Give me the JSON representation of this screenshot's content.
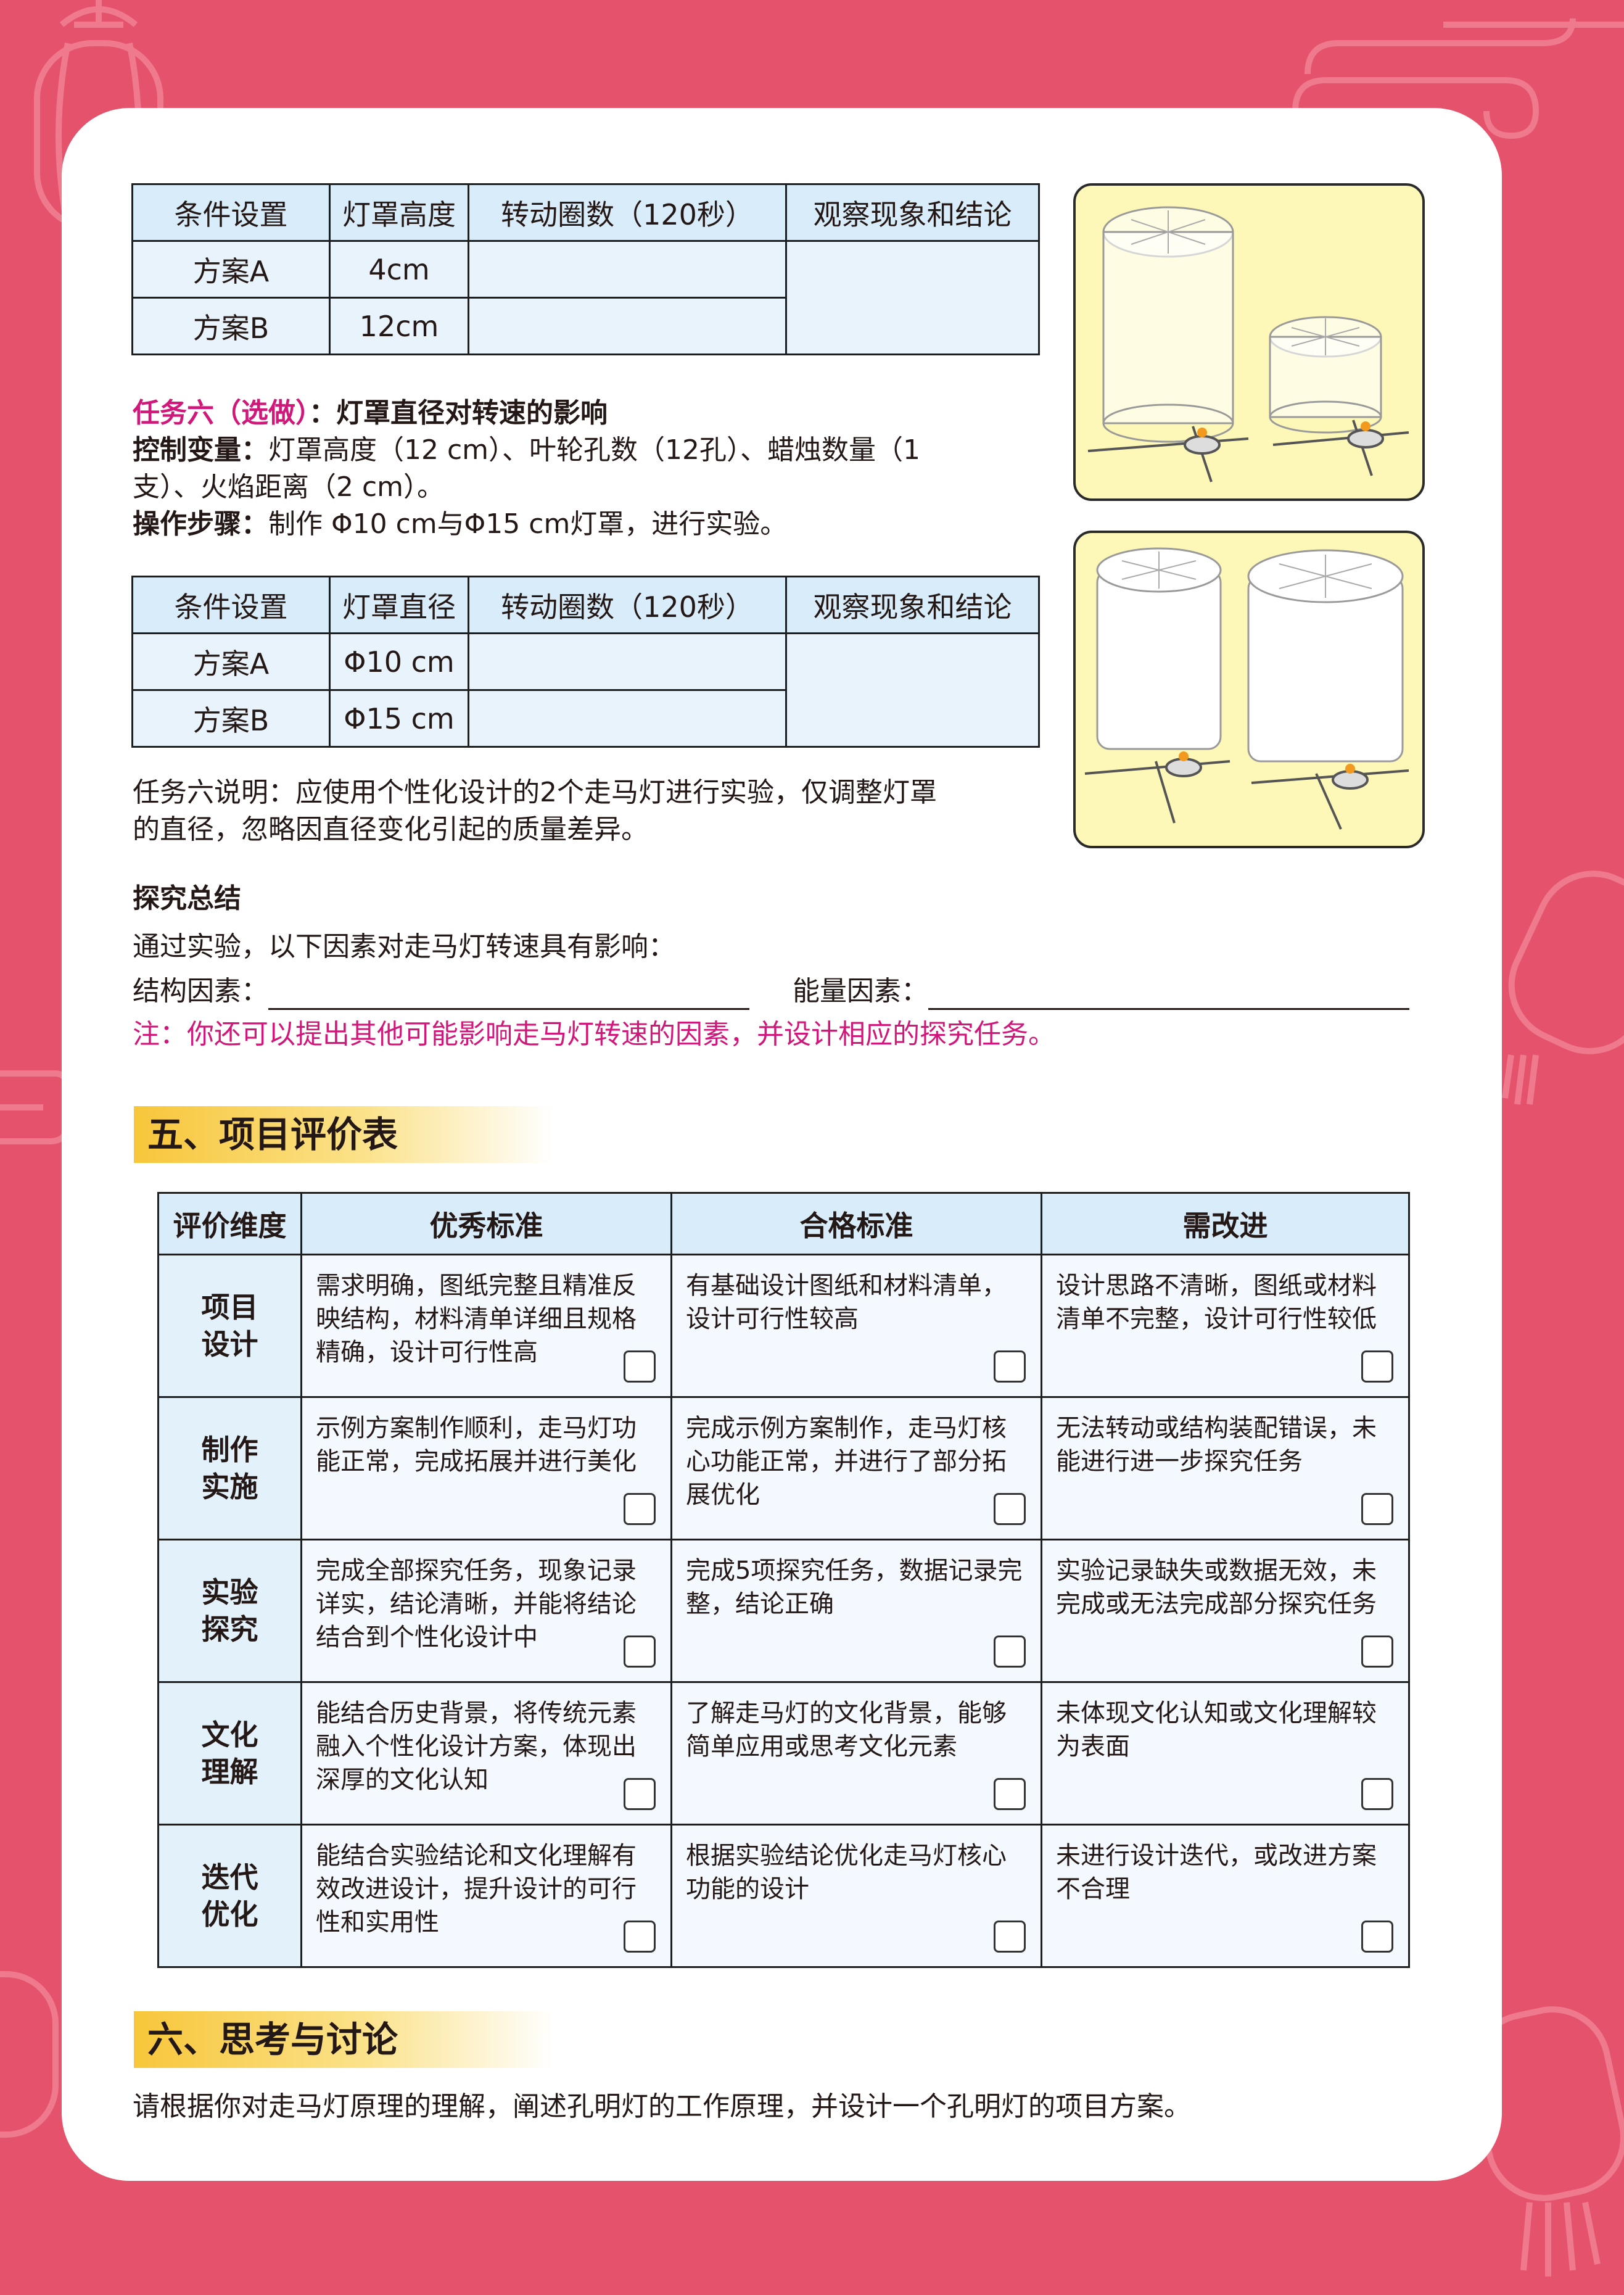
{
  "table1": {
    "headers": [
      "条件设置",
      "灯罩高度",
      "转动圈数（120秒）",
      "观察现象和结论"
    ],
    "rows": [
      {
        "label": "方案A",
        "value": "4cm"
      },
      {
        "label": "方案B",
        "value": "12cm"
      }
    ]
  },
  "task6": {
    "title_pink": "任务六（选做）",
    "title_rest": "：灯罩直径对转速的影响",
    "control_label": "控制变量：",
    "control_text_1": "灯罩高度（12 cm）、叶轮孔数（12孔）、蜡烛数量（1",
    "control_text_2": "支）、火焰距离（2 cm）。",
    "steps_label": "操作步骤：",
    "steps_text": "制作 Φ10 cm与Φ15 cm灯罩，进行实验。"
  },
  "table2": {
    "headers": [
      "条件设置",
      "灯罩直径",
      "转动圈数（120秒）",
      "观察现象和结论"
    ],
    "rows": [
      {
        "label": "方案A",
        "value": "Φ10 cm"
      },
      {
        "label": "方案B",
        "value": "Φ15 cm"
      }
    ]
  },
  "task6_note_1": "任务六说明：应使用个性化设计的2个走马灯进行实验，仅调整灯罩",
  "task6_note_2": "的直径，忽略因直径变化引起的质量差异。",
  "summary": {
    "title": "探究总结",
    "intro": "通过实验，以下因素对走马灯转速具有影响：",
    "structural_label": "结构因素：",
    "energy_label": "能量因素：",
    "note": "注：你还可以提出其他可能影响走马灯转速的因素，并设计相应的探究任务。"
  },
  "section5": {
    "title": "五、项目评价表",
    "headers": [
      "评价维度",
      "优秀标准",
      "合格标准",
      "需改进"
    ],
    "rows": [
      {
        "dim_1": "项目",
        "dim_2": "设计",
        "excellent": "需求明确，图纸完整且精准反映结构，材料清单详细且规格精确，设计可行性高",
        "pass": "有基础设计图纸和材料清单，设计可行性较高",
        "improve": "设计思路不清晰，图纸或材料清单不完整，设计可行性较低"
      },
      {
        "dim_1": "制作",
        "dim_2": "实施",
        "excellent": "示例方案制作顺利，走马灯功能正常，完成拓展并进行美化",
        "pass": "完成示例方案制作，走马灯核心功能正常，并进行了部分拓展优化",
        "improve": "无法转动或结构装配错误，未能进行进一步探究任务"
      },
      {
        "dim_1": "实验",
        "dim_2": "探究",
        "excellent": "完成全部探究任务，现象记录详实，结论清晰，并能将结论结合到个性化设计中",
        "pass": "完成5项探究任务，数据记录完整，结论正确",
        "improve": "实验记录缺失或数据无效，未完成或无法完成部分探究任务"
      },
      {
        "dim_1": "文化",
        "dim_2": "理解",
        "excellent": "能结合历史背景，将传统元素融入个性化设计方案，体现出深厚的文化认知",
        "pass": "了解走马灯的文化背景，能够简单应用或思考文化元素",
        "improve": "未体现文化认知或文化理解较为表面"
      },
      {
        "dim_1": "迭代",
        "dim_2": "优化",
        "excellent": "能结合实验结论和文化理解有效改进设计，提升设计的可行性和实用性",
        "pass": "根据实验结论优化走马灯核心功能的设计",
        "improve": "未进行设计迭代，或改进方案不合理"
      }
    ]
  },
  "section6": {
    "title": "六、思考与讨论",
    "text": "请根据你对走马灯原理的理解，阐述孔明灯的工作原理，并设计一个孔明灯的项目方案。"
  },
  "colors": {
    "background": "#e4526b",
    "card": "#ffffff",
    "header_fill": "#d9ecfa",
    "accent_pink": "#d0187a",
    "section_yellow": "#f7c63a",
    "image_panel": "#fdf7b8"
  },
  "icons": [
    "lantern-outline-icon",
    "cloud-pattern-icon",
    "checkbox-icon",
    "lantern-apparatus-illustration"
  ]
}
